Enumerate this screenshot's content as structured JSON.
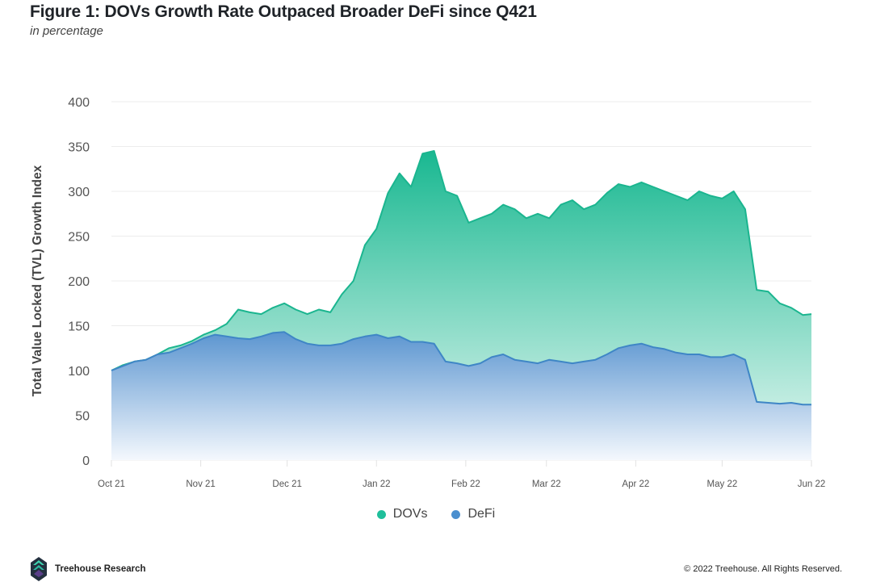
{
  "header": {
    "title": "Figure 1: DOVs Growth Rate Outpaced Broader DeFi since Q421",
    "subtitle": "in percentage"
  },
  "chart_data": {
    "type": "area",
    "title": "Figure 1: DOVs Growth Rate Outpaced Broader DeFi since Q421",
    "subtitle": "in percentage",
    "xlabel": "",
    "ylabel": "Total Value Locked (TVL) Growth Index",
    "ylim": [
      0,
      400
    ],
    "yticks": [
      0,
      50,
      100,
      150,
      200,
      250,
      300,
      350,
      400
    ],
    "xlim_days": [
      0,
      243
    ],
    "xticks": [
      {
        "label": "Oct 21",
        "day": 0
      },
      {
        "label": "Nov 21",
        "day": 31
      },
      {
        "label": "Dec 21",
        "day": 61
      },
      {
        "label": "Jan 22",
        "day": 92
      },
      {
        "label": "Feb 22",
        "day": 123
      },
      {
        "label": "Mar 22",
        "day": 151
      },
      {
        "label": "Apr 22",
        "day": 182
      },
      {
        "label": "May 22",
        "day": 212
      },
      {
        "label": "Jun 22",
        "day": 243
      }
    ],
    "grid": true,
    "legend_position": "bottom-center",
    "x_days": [
      0,
      4,
      8,
      12,
      16,
      20,
      24,
      28,
      32,
      36,
      40,
      44,
      48,
      52,
      56,
      60,
      64,
      68,
      72,
      76,
      80,
      84,
      88,
      92,
      96,
      100,
      104,
      108,
      112,
      116,
      120,
      124,
      128,
      132,
      136,
      140,
      144,
      148,
      152,
      156,
      160,
      164,
      168,
      172,
      176,
      180,
      184,
      188,
      192,
      196,
      200,
      204,
      208,
      212,
      216,
      220,
      224,
      228,
      232,
      236,
      240,
      243
    ],
    "series": [
      {
        "name": "DOVs",
        "color": "#1fbf9b",
        "values": [
          100,
          106,
          110,
          112,
          118,
          125,
          128,
          133,
          140,
          145,
          152,
          168,
          165,
          163,
          170,
          175,
          168,
          163,
          168,
          165,
          185,
          200,
          240,
          258,
          298,
          320,
          305,
          342,
          345,
          300,
          295,
          265,
          270,
          275,
          285,
          280,
          270,
          275,
          270,
          285,
          290,
          280,
          285,
          298,
          308,
          305,
          310,
          305,
          300,
          295,
          290,
          300,
          295,
          292,
          300,
          280,
          190,
          188,
          175,
          170,
          162,
          163
        ]
      },
      {
        "name": "DeFi",
        "color": "#4a8fcf",
        "values": [
          100,
          105,
          110,
          112,
          118,
          120,
          125,
          130,
          136,
          140,
          138,
          136,
          135,
          138,
          142,
          143,
          135,
          130,
          128,
          128,
          130,
          135,
          138,
          140,
          136,
          138,
          132,
          132,
          130,
          110,
          108,
          105,
          108,
          115,
          118,
          112,
          110,
          108,
          112,
          110,
          108,
          110,
          112,
          118,
          125,
          128,
          130,
          126,
          124,
          120,
          118,
          118,
          115,
          115,
          118,
          112,
          65,
          64,
          63,
          64,
          62,
          62
        ]
      }
    ]
  },
  "legend": {
    "items": [
      {
        "label": "DOVs",
        "color": "#1fbf9b"
      },
      {
        "label": "DeFi",
        "color": "#4a8fcf"
      }
    ]
  },
  "footer": {
    "brand": "Treehouse Research",
    "copyright": "© 2022 Treehouse. All Rights Reserved."
  }
}
